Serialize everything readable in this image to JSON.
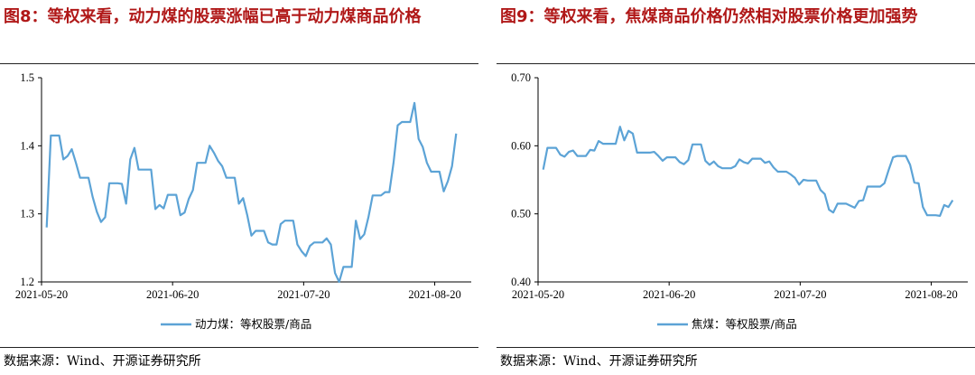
{
  "charts": [
    {
      "title": "图8：等权来看，动力煤的股票涨幅已高于动力煤商品价格",
      "source": "数据来源：Wind、开源证券研究所",
      "color": "#5ca3d6",
      "chart_data": {
        "type": "line",
        "title": "图8：等权来看，动力煤的股票涨幅已高于动力煤商品价格",
        "xlabel": "",
        "ylabel": "",
        "ylim": [
          1.2,
          1.5
        ],
        "yticks": [
          "1.2",
          "1.3",
          "1.4",
          "1.5"
        ],
        "xticks": [
          "2021-05-20",
          "2021-06-20",
          "2021-07-20",
          "2021-08-20"
        ],
        "grid": false,
        "legend_position": "bottom-center",
        "series": [
          {
            "name": "动力煤：等权股票/商品",
            "values": [
              1.28,
              1.415,
              1.415,
              1.415,
              1.38,
              1.385,
              1.395,
              1.375,
              1.353,
              1.353,
              1.353,
              1.325,
              1.303,
              1.288,
              1.295,
              1.345,
              1.345,
              1.345,
              1.344,
              1.315,
              1.38,
              1.397,
              1.365,
              1.365,
              1.365,
              1.365,
              1.307,
              1.313,
              1.308,
              1.328,
              1.328,
              1.328,
              1.298,
              1.302,
              1.322,
              1.335,
              1.375,
              1.375,
              1.375,
              1.4,
              1.39,
              1.378,
              1.37,
              1.353,
              1.353,
              1.353,
              1.315,
              1.323,
              1.298,
              1.268,
              1.275,
              1.275,
              1.275,
              1.258,
              1.255,
              1.255,
              1.285,
              1.29,
              1.29,
              1.29,
              1.255,
              1.245,
              1.238,
              1.253,
              1.258,
              1.258,
              1.258,
              1.264,
              1.255,
              1.213,
              1.2,
              1.222,
              1.222,
              1.222,
              1.29,
              1.263,
              1.27,
              1.295,
              1.327,
              1.327,
              1.327,
              1.332,
              1.332,
              1.375,
              1.43,
              1.435,
              1.435,
              1.435,
              1.463,
              1.41,
              1.398,
              1.375,
              1.362,
              1.362,
              1.362,
              1.333,
              1.348,
              1.37,
              1.418
            ]
          }
        ]
      }
    },
    {
      "title": "图9：等权来看，焦煤商品价格仍然相对股票价格更加强势",
      "source": "数据来源：Wind、开源证券研究所",
      "color": "#5ca3d6",
      "chart_data": {
        "type": "line",
        "title": "图9：等权来看，焦煤商品价格仍然相对股票价格更加强势",
        "xlabel": "",
        "ylabel": "",
        "ylim": [
          0.4,
          0.7
        ],
        "yticks": [
          "0.40",
          "0.50",
          "0.60",
          "0.70"
        ],
        "xticks": [
          "2021-05-20",
          "2021-06-20",
          "2021-07-20",
          "2021-08-20"
        ],
        "grid": false,
        "legend_position": "bottom-center",
        "series": [
          {
            "name": "焦煤：等权股票/商品",
            "values": [
              0.565,
              0.597,
              0.597,
              0.597,
              0.587,
              0.584,
              0.591,
              0.593,
              0.585,
              0.585,
              0.585,
              0.594,
              0.593,
              0.607,
              0.603,
              0.603,
              0.603,
              0.603,
              0.628,
              0.608,
              0.622,
              0.618,
              0.59,
              0.59,
              0.59,
              0.59,
              0.591,
              0.585,
              0.578,
              0.583,
              0.583,
              0.583,
              0.576,
              0.573,
              0.579,
              0.602,
              0.602,
              0.602,
              0.578,
              0.572,
              0.577,
              0.57,
              0.567,
              0.567,
              0.567,
              0.57,
              0.58,
              0.576,
              0.574,
              0.581,
              0.581,
              0.581,
              0.575,
              0.577,
              0.568,
              0.562,
              0.562,
              0.562,
              0.558,
              0.553,
              0.543,
              0.55,
              0.549,
              0.549,
              0.549,
              0.535,
              0.529,
              0.506,
              0.502,
              0.515,
              0.515,
              0.515,
              0.512,
              0.509,
              0.519,
              0.52,
              0.54,
              0.54,
              0.54,
              0.54,
              0.545,
              0.565,
              0.583,
              0.585,
              0.585,
              0.585,
              0.572,
              0.546,
              0.545,
              0.51,
              0.498,
              0.498,
              0.498,
              0.497,
              0.513,
              0.51,
              0.52
            ]
          }
        ]
      }
    }
  ]
}
